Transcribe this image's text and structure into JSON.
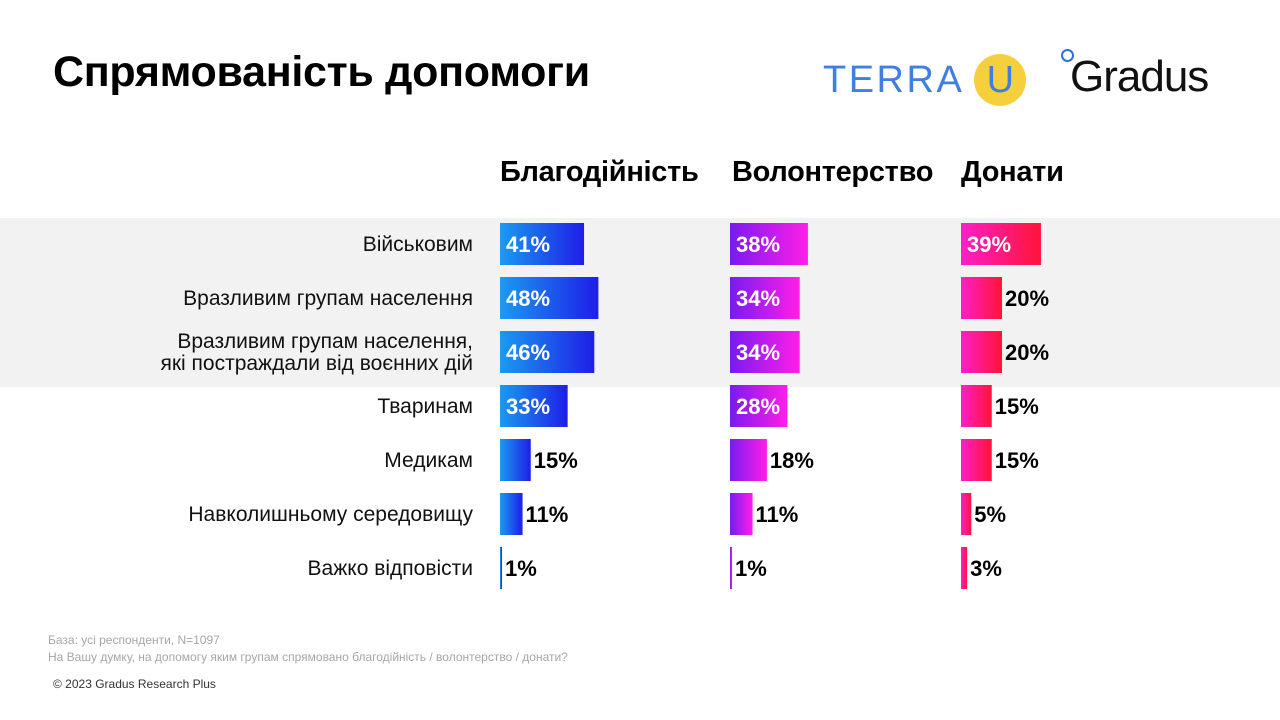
{
  "title": "Спрямованість допомоги",
  "logos": {
    "terra": "TERRA",
    "terra_u": "U",
    "gradus": "Gradus"
  },
  "colors": {
    "band": "#f2f2f2",
    "blagodiynist": [
      "#1a9bf0",
      "#1e1ee8"
    ],
    "volonterstvo": [
      "#7a1af2",
      "#ff1ee8"
    ],
    "donaty": [
      "#ff1ec8",
      "#ff1438"
    ]
  },
  "chart_data": {
    "type": "bar",
    "orientation": "horizontal",
    "title": "Спрямованість допомоги",
    "categories": [
      [
        "Військовим"
      ],
      [
        "Вразливим групам населення"
      ],
      [
        "Вразливим групам населення,",
        "які постраждали від воєнних дій"
      ],
      [
        "Тваринам"
      ],
      [
        "Медикам"
      ],
      [
        "Навколишньому середовищу"
      ],
      [
        "Важко відповісти"
      ]
    ],
    "series": [
      {
        "name": "Благодійність",
        "values": [
          41,
          48,
          46,
          33,
          15,
          11,
          1
        ]
      },
      {
        "name": "Волонтерство",
        "values": [
          38,
          34,
          34,
          28,
          18,
          11,
          1
        ]
      },
      {
        "name": "Донати",
        "values": [
          39,
          20,
          20,
          15,
          15,
          5,
          3
        ]
      }
    ],
    "unit": "%",
    "highlighted_rows": 3
  },
  "footnotes": {
    "base": "База: усі респонденти, N=1097",
    "question": "На Вашу думку, на допомогу яким групам спрямовано благодійність / волонтерство / донати?"
  },
  "copyright": "© 2023 Gradus Research Plus"
}
